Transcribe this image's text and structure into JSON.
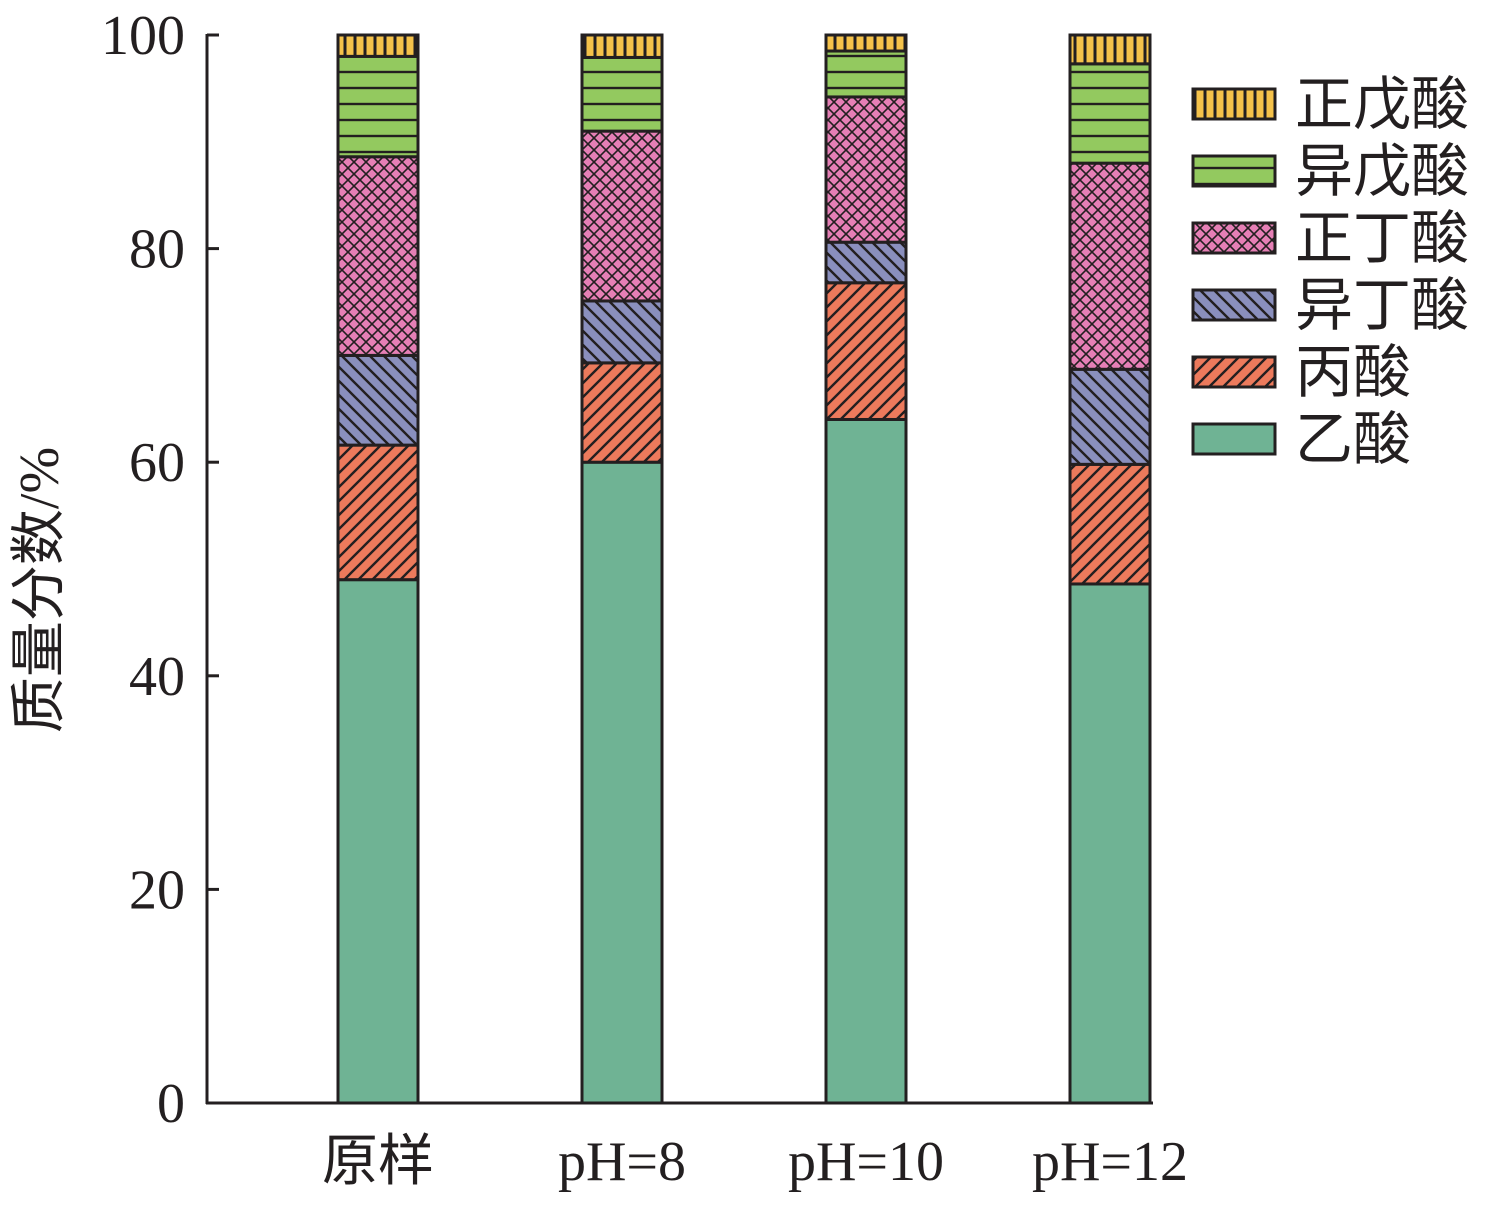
{
  "chart_data": {
    "type": "bar",
    "stacked": true,
    "title": "",
    "xlabel": "",
    "ylabel": "质量分数/%",
    "ylim": [
      0,
      100
    ],
    "yticks": [
      0,
      20,
      40,
      60,
      80,
      100
    ],
    "grid": false,
    "legend_position": "right",
    "categories": [
      "原样",
      "pH=8",
      "pH=10",
      "pH=12"
    ],
    "series": [
      {
        "name": "乙酸",
        "color": "#6fb394",
        "pattern": "solid",
        "values": [
          49.0,
          60.0,
          64.0,
          48.6
        ]
      },
      {
        "name": "丙酸",
        "color": "#ec7a5c",
        "pattern": "diagonal-up",
        "values": [
          12.6,
          9.3,
          12.8,
          11.2
        ]
      },
      {
        "name": "异丁酸",
        "color": "#8a8fbd",
        "pattern": "diagonal-down",
        "values": [
          8.4,
          5.8,
          3.8,
          8.9
        ]
      },
      {
        "name": "正丁酸",
        "color": "#e57fb5",
        "pattern": "crosshatch",
        "values": [
          18.6,
          15.9,
          13.6,
          19.3
        ]
      },
      {
        "name": "异戊酸",
        "color": "#93c95f",
        "pattern": "horizontal",
        "values": [
          9.4,
          6.9,
          4.3,
          9.3
        ]
      },
      {
        "name": "正戊酸",
        "color": "#f5c24a",
        "pattern": "vertical",
        "values": [
          2.0,
          2.1,
          1.5,
          2.7
        ]
      }
    ]
  }
}
